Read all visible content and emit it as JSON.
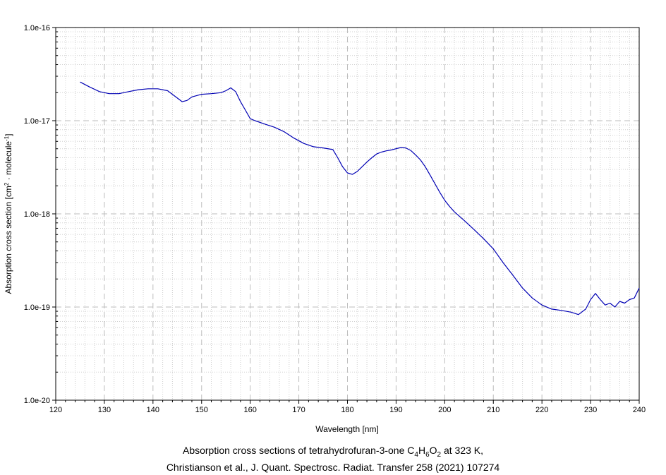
{
  "caption": {
    "line1_prefix": "Absorption cross sections of tetrahydrofuran-3-one C",
    "line1_sub1": "4",
    "line1_h": "H",
    "line1_sub2": "6",
    "line1_o": "O",
    "line1_sub3": "2",
    "line1_suffix": " at 323 K,",
    "line2": "Christianson et al., J. Quant. Spectrosc. Radiat. Transfer 258 (2021) 107274"
  },
  "colors": {
    "series": "#0000b4",
    "major_grid": "#bdbdbd",
    "minor_grid": "#d0d0d0",
    "axis": "#000000"
  },
  "chart_data": {
    "type": "line",
    "xlabel": "Wavelength [nm]",
    "ylabel_prefix": "Absorption cross section [cm",
    "ylabel_sup1": "2",
    "ylabel_mid": " · molecule",
    "ylabel_sup2": "-1",
    "ylabel_suffix": "]",
    "xlim": [
      120,
      240
    ],
    "ylim": [
      1e-20,
      1e-16
    ],
    "yscale": "log",
    "grid": true,
    "x_ticks": [
      120,
      130,
      140,
      150,
      160,
      170,
      180,
      190,
      200,
      210,
      220,
      230,
      240
    ],
    "x_tick_labels": [
      "120",
      "130",
      "140",
      "150",
      "160",
      "170",
      "180",
      "190",
      "200",
      "210",
      "220",
      "230",
      "240"
    ],
    "y_ticks": [
      1e-20,
      1e-19,
      1e-18,
      1e-17,
      1e-16
    ],
    "y_tick_labels": [
      "1.0e-20",
      "1.0e-19",
      "1.0e-18",
      "1.0e-17",
      "1.0e-16"
    ],
    "series": [
      {
        "x": [
          125,
          127,
          129,
          131,
          133,
          135,
          137,
          139,
          141,
          143,
          145,
          146,
          147,
          148,
          150,
          152,
          154,
          155,
          156,
          157,
          158,
          159,
          160,
          161,
          163,
          165,
          167,
          169,
          171,
          173,
          175,
          177,
          178,
          179,
          180,
          181,
          182,
          183,
          184,
          185,
          186,
          187,
          188,
          189,
          190,
          191,
          192,
          193,
          194,
          195,
          196,
          197,
          198,
          199,
          200,
          201,
          202,
          204,
          206,
          208,
          210,
          212,
          214,
          216,
          218,
          220,
          222,
          224,
          226,
          227.5,
          229,
          230,
          231,
          232,
          233,
          234,
          235,
          236,
          237,
          238,
          239,
          240
        ],
        "y": [
          2.6e-17,
          2.3e-17,
          2.05e-17,
          1.95e-17,
          1.95e-17,
          2.05e-17,
          2.15e-17,
          2.2e-17,
          2.2e-17,
          2.1e-17,
          1.75e-17,
          1.6e-17,
          1.65e-17,
          1.8e-17,
          1.92e-17,
          1.95e-17,
          2e-17,
          2.1e-17,
          2.25e-17,
          2.05e-17,
          1.6e-17,
          1.3e-17,
          1.05e-17,
          1e-17,
          9.2e-18,
          8.5e-18,
          7.6e-18,
          6.5e-18,
          5.7e-18,
          5.25e-18,
          5.1e-18,
          4.9e-18,
          4e-18,
          3.2e-18,
          2.75e-18,
          2.65e-18,
          2.85e-18,
          3.2e-18,
          3.6e-18,
          4e-18,
          4.4e-18,
          4.6e-18,
          4.75e-18,
          4.85e-18,
          5e-18,
          5.15e-18,
          5.1e-18,
          4.8e-18,
          4.3e-18,
          3.8e-18,
          3.2e-18,
          2.6e-18,
          2.1e-18,
          1.7e-18,
          1.4e-18,
          1.2e-18,
          1.05e-18,
          8.5e-19,
          6.8e-19,
          5.4e-19,
          4.2e-19,
          3e-19,
          2.2e-19,
          1.6e-19,
          1.25e-19,
          1.05e-19,
          9.5e-20,
          9.2e-20,
          8.8e-20,
          8.3e-20,
          9.5e-20,
          1.2e-19,
          1.4e-19,
          1.2e-19,
          1.05e-19,
          1.1e-19,
          1e-19,
          1.15e-19,
          1.1e-19,
          1.2e-19,
          1.25e-19,
          1.6e-19
        ]
      }
    ]
  }
}
